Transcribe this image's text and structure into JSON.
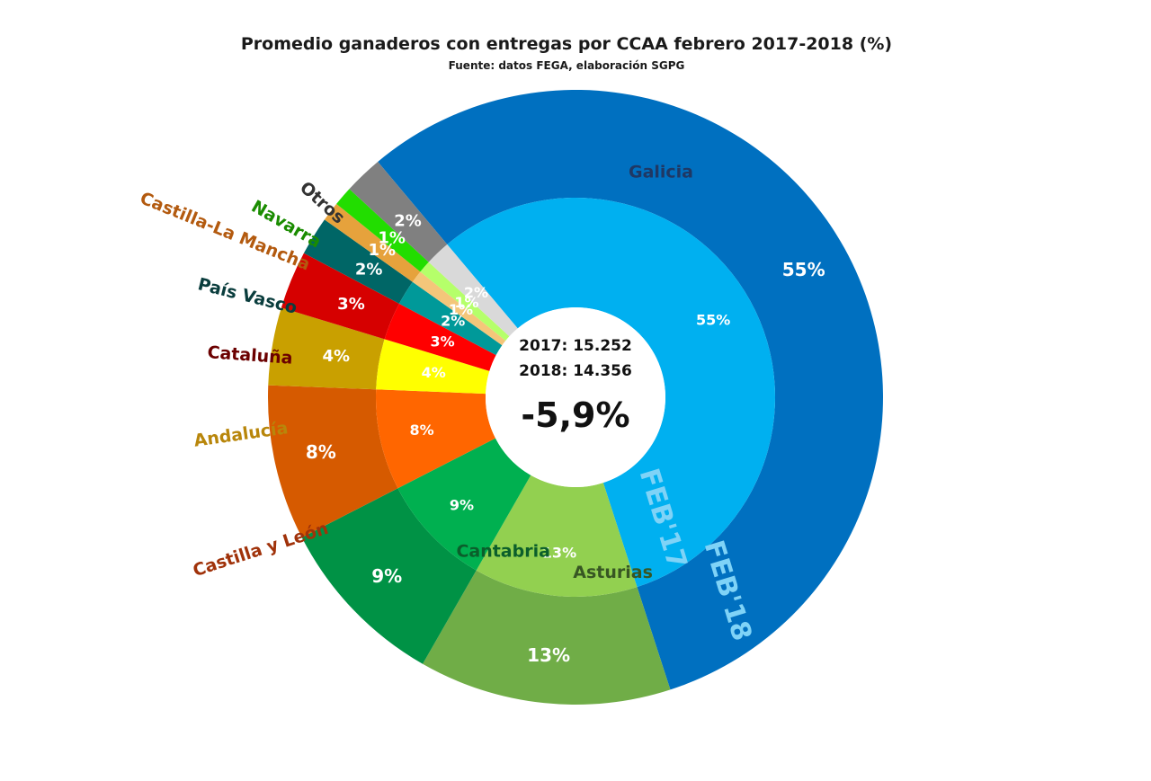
{
  "chart_data": {
    "type": "donut",
    "title": "Promedio ganaderos con entregas por CCAA febrero 2017-2018 (%)",
    "subtitle": "Fuente: datos FEGA, elaboración SGPG",
    "center": {
      "line1": "2017: 15.252",
      "line2": "2018: 14.356",
      "change": "-5,9%"
    },
    "series": [
      {
        "name": "FEB'17",
        "ring": "inner"
      },
      {
        "name": "FEB'18",
        "ring": "outer"
      }
    ],
    "categories": [
      {
        "name": "Galicia",
        "inner_label": "55%",
        "outer_label": "55%",
        "inner_value": 55,
        "outer_value": 55,
        "inner_color": "#00b0f0",
        "outer_color": "#0070c0",
        "name_color": "#1f3864"
      },
      {
        "name": "Asturias",
        "inner_label": "13%",
        "outer_label": "13%",
        "inner_value": 13,
        "outer_value": 13,
        "inner_color": "#92d050",
        "outer_color": "#70ad47",
        "name_color": "#375623"
      },
      {
        "name": "Cantabria",
        "inner_label": "9%",
        "outer_label": "9%",
        "inner_value": 9,
        "outer_value": 9,
        "inner_color": "#00b050",
        "outer_color": "#009245",
        "name_color": "#0b5e2b"
      },
      {
        "name": "Castilla y León",
        "inner_label": "8%",
        "outer_label": "8%",
        "inner_value": 8,
        "outer_value": 8,
        "inner_color": "#ff6600",
        "outer_color": "#d65a00",
        "name_color": "#a0320a"
      },
      {
        "name": "Andalucía",
        "inner_label": "4%",
        "outer_label": "4%",
        "inner_value": 4,
        "outer_value": 4,
        "inner_color": "#ffff00",
        "outer_color": "#c9a000",
        "name_color": "#b8860b"
      },
      {
        "name": "Cataluña",
        "inner_label": "3%",
        "outer_label": "3%",
        "inner_value": 3,
        "outer_value": 3,
        "inner_color": "#ff0000",
        "outer_color": "#d60000",
        "name_color": "#6b0000"
      },
      {
        "name": "País Vasco",
        "inner_label": "2%",
        "outer_label": "2%",
        "inner_value": 2,
        "outer_value": 2,
        "inner_color": "#009999",
        "outer_color": "#006666",
        "name_color": "#0a3d3d"
      },
      {
        "name": "Castilla-La Mancha",
        "inner_label": "1%",
        "outer_label": "1%",
        "inner_value": 1,
        "outer_value": 1,
        "inner_color": "#f4c67a",
        "outer_color": "#e6a23c",
        "name_color": "#b35a0f"
      },
      {
        "name": "Navarra",
        "inner_label": "1%",
        "outer_label": "1%",
        "inner_value": 1,
        "outer_value": 1,
        "inner_color": "#b5ff6a",
        "outer_color": "#22dd00",
        "name_color": "#1a8c00"
      },
      {
        "name": "Otros",
        "inner_label": "2%",
        "outer_label": "2%",
        "inner_value": 2,
        "outer_value": 2,
        "inner_color": "#d9d9d9",
        "outer_color": "#808080",
        "name_color": "#333333"
      }
    ]
  }
}
